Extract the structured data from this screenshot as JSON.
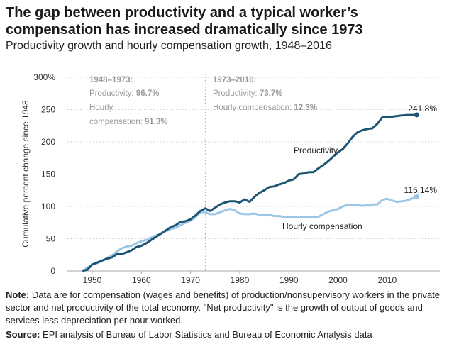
{
  "title": "The gap between productivity and a typical worker’s compensation has increased dramatically since 1973",
  "subtitle": "Productivity growth and hourly compensation growth, 1948–2016",
  "note_label": "Note:",
  "note_text": "Data are for compensation (wages and benefits) of production/nonsupervisory workers in the private sector and net productivity of the total economy. \"Net productivity\" is the growth of output of goods and services less depreciation per hour worked.",
  "source_label": "Source:",
  "source_text": "EPI analysis of Bureau of Labor Statistics and Bureau of Economic Analysis data",
  "chart_data": {
    "type": "line",
    "ylabel": "Cumulative percent change since 1948",
    "ylim": [
      0,
      300
    ],
    "xlim": [
      1945,
      2019
    ],
    "yticks": [
      "0",
      "50",
      "100",
      "150",
      "200",
      "250",
      "300%"
    ],
    "ytick_values": [
      0,
      50,
      100,
      150,
      200,
      250,
      300
    ],
    "xticks": [
      1950,
      1960,
      1970,
      1980,
      1990,
      2000,
      2010
    ],
    "grid": "horizontal dotted",
    "divider_year": 1973,
    "annotations": {
      "p1_heading": "1948–1973:",
      "p1_prod_label": "Productivity: ",
      "p1_prod_value": "96.7%",
      "p1_comp_label1": "Hourly",
      "p1_comp_label2": "compensation: ",
      "p1_comp_value": "91.3%",
      "p2_heading": "1973–2016:",
      "p2_prod_label": "Productivity: ",
      "p2_prod_value": "73.7%",
      "p2_comp_label": "Hourly compensation: ",
      "p2_comp_value": "12.3%"
    },
    "x_start": 1948,
    "series": [
      {
        "name": "Productivity",
        "color": "#1d5475",
        "end_label": "241.8%",
        "values": [
          0,
          2,
          10,
          13,
          16,
          19,
          21,
          26,
          26,
          29,
          32,
          37,
          39,
          43,
          48,
          53,
          58,
          63,
          68,
          71,
          76,
          77,
          80,
          86,
          93,
          97,
          93,
          98,
          103,
          106,
          108,
          108,
          106,
          111,
          107,
          115,
          121,
          125,
          130,
          131,
          134,
          136,
          140,
          142,
          150,
          151,
          153,
          153,
          159,
          164,
          170,
          177,
          184,
          189,
          198,
          208,
          215,
          218,
          220,
          221,
          228,
          238,
          238,
          239,
          240,
          241,
          241.5,
          241.6,
          241.8
        ]
      },
      {
        "name": "Hourly compensation",
        "color": "#9cc6e6",
        "end_label": "115.14%",
        "values": [
          0,
          5,
          10,
          12,
          16,
          20,
          24,
          30,
          35,
          38,
          39,
          43,
          46,
          48,
          52,
          55,
          58,
          62,
          65,
          67,
          71,
          75,
          78,
          83,
          91,
          91.3,
          88,
          88,
          91,
          94,
          96,
          94,
          89,
          88,
          88,
          89,
          87,
          87,
          87,
          85,
          85,
          84,
          83,
          83,
          84,
          84,
          84,
          83,
          84,
          88,
          92,
          94,
          96,
          100,
          103,
          102,
          102,
          101,
          102,
          103,
          103,
          110,
          112,
          109,
          107,
          108,
          109,
          112,
          115.14
        ]
      }
    ]
  }
}
